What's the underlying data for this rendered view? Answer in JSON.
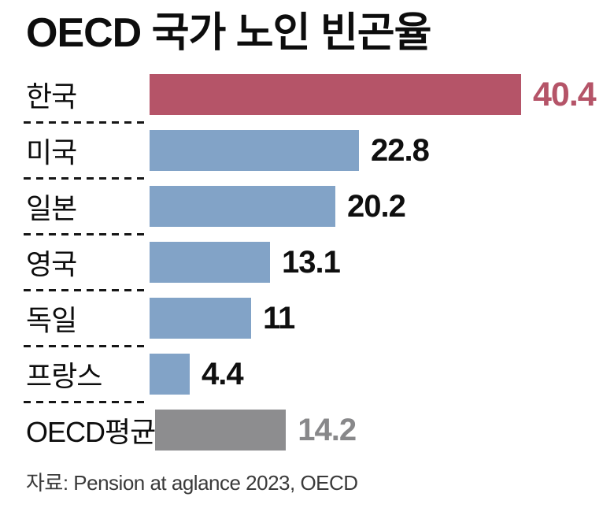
{
  "title": "OECD 국가 노인 빈곤율",
  "source": "자료: Pension at aglance 2023, OECD",
  "colors": {
    "highlight_bar": "#b55468",
    "default_bar": "#82a3c7",
    "average_bar": "#8d8d8f",
    "value_text_default": "#0f0f0f",
    "value_text_highlight": "#b55468",
    "value_text_average": "#88888a",
    "title_text": "#0d0d0d",
    "source_text": "#3a3a3a",
    "separator": "#161616",
    "background": "#ffffff"
  },
  "chart_data": {
    "type": "bar",
    "orientation": "horizontal",
    "title": "OECD 국가 노인 빈곤율",
    "categories": [
      "한국",
      "미국",
      "일본",
      "영국",
      "독일",
      "프랑스",
      "OECD평균"
    ],
    "values": [
      40.4,
      22.8,
      20.2,
      13.1,
      11,
      4.4,
      14.2
    ],
    "value_labels": [
      "40.4",
      "22.8",
      "20.2",
      "13.1",
      "11",
      "4.4",
      "14.2"
    ],
    "bar_colors": [
      "#b55468",
      "#82a3c7",
      "#82a3c7",
      "#82a3c7",
      "#82a3c7",
      "#82a3c7",
      "#8d8d8f"
    ],
    "value_colors": [
      "#b55468",
      "#0f0f0f",
      "#0f0f0f",
      "#0f0f0f",
      "#0f0f0f",
      "#0f0f0f",
      "#88888a"
    ],
    "highlight_index": 0,
    "xlim": [
      0,
      40.4
    ],
    "grid": false,
    "legend": false,
    "xlabel": "",
    "ylabel": "",
    "source": "자료: Pension at aglance 2023, OECD"
  }
}
